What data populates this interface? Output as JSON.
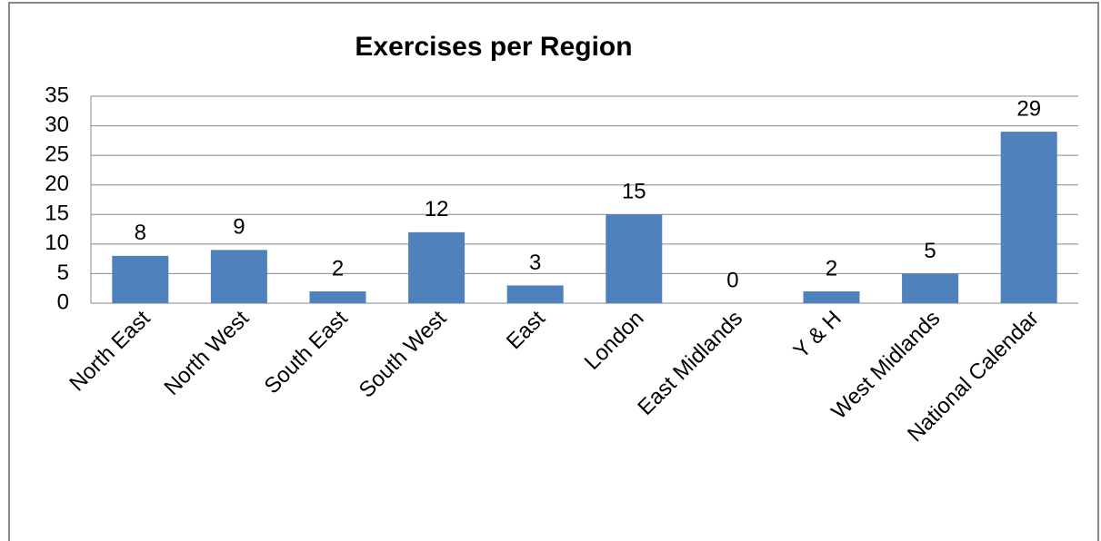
{
  "chart_data": {
    "type": "bar",
    "title": "Exercises per Region",
    "categories": [
      "North East",
      "North West",
      "South East",
      "South West",
      "East",
      "London",
      "East Midlands",
      "Y & H",
      "West Midlands",
      "National Calendar"
    ],
    "values": [
      8,
      9,
      2,
      12,
      3,
      15,
      0,
      2,
      5,
      29
    ],
    "color": "#4f81bd",
    "ylim": [
      0,
      35
    ],
    "yticks": [
      0,
      5,
      10,
      15,
      20,
      25,
      30,
      35
    ],
    "grid": true
  }
}
